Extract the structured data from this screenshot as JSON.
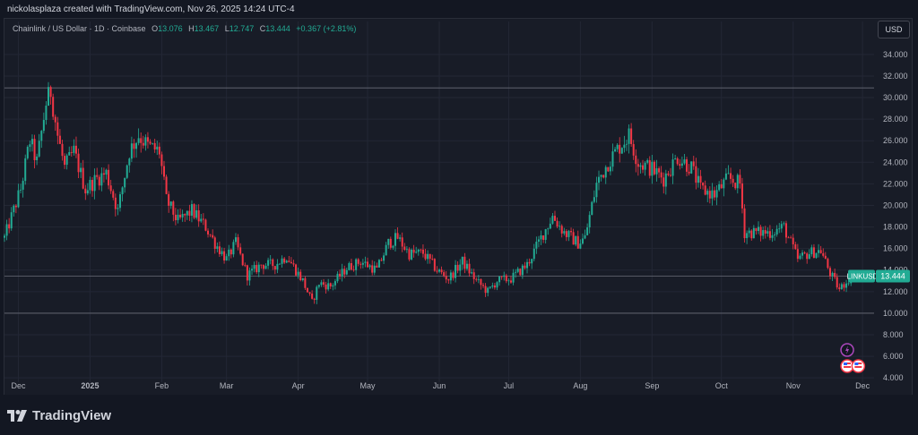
{
  "header": {
    "caption": "nickolasplaza created with TradingView.com, Nov 26, 2025 14:24 UTC-4"
  },
  "legend": {
    "symbol": "Chainlink / US Dollar · 1D · Coinbase",
    "open_label": "O",
    "open": "13.076",
    "high_label": "H",
    "high": "13.467",
    "low_label": "L",
    "low": "12.747",
    "close_label": "C",
    "close": "13.444",
    "change": "+0.367 (+2.81%)"
  },
  "currency_button": "USD",
  "price_tag": {
    "symbol": "LINKUSD",
    "value": "13.444"
  },
  "logo": {
    "text": "TradingView",
    "icon": "tradingview-logo-icon"
  },
  "colors": {
    "up": "#22ab94",
    "down": "#f23645",
    "background": "#131722",
    "pane": "#181c27"
  },
  "chart_data": {
    "type": "candlestick",
    "symbol": "LINKUSD",
    "xlabel": "",
    "ylabel": "",
    "yticks": [
      4,
      6,
      8,
      10,
      12,
      14,
      16,
      18,
      20,
      22,
      24,
      26,
      28,
      30,
      32,
      34
    ],
    "ytick_labels": [
      "4.000",
      "6.000",
      "8.000",
      "10.000",
      "12.000",
      "14.000",
      "16.000",
      "18.000",
      "20.000",
      "22.000",
      "24.000",
      "26.000",
      "28.000",
      "30.000",
      "32.000",
      "34.000"
    ],
    "ylim": [
      3.6,
      35.4
    ],
    "xlim": [
      "2024-11-25",
      "2025-12-06"
    ],
    "xticks": [
      {
        "label": "Dec",
        "date": "2024-12-01"
      },
      {
        "label": "2025",
        "date": "2025-01-01"
      },
      {
        "label": "Feb",
        "date": "2025-02-01"
      },
      {
        "label": "Mar",
        "date": "2025-03-01"
      },
      {
        "label": "Apr",
        "date": "2025-04-01"
      },
      {
        "label": "May",
        "date": "2025-05-01"
      },
      {
        "label": "Jun",
        "date": "2025-06-01"
      },
      {
        "label": "Jul",
        "date": "2025-07-01"
      },
      {
        "label": "Aug",
        "date": "2025-08-01"
      },
      {
        "label": "Sep",
        "date": "2025-09-01"
      },
      {
        "label": "Oct",
        "date": "2025-10-01"
      },
      {
        "label": "Nov",
        "date": "2025-11-01"
      },
      {
        "label": "Dec",
        "date": "2025-12-01"
      }
    ],
    "horizontal_lines": [
      30.9,
      13.44,
      10.0
    ],
    "last_price": 13.444,
    "closes": [
      {
        "date": "2024-11-25",
        "close": 17.0
      },
      {
        "date": "2024-12-02",
        "close": 21.5
      },
      {
        "date": "2024-12-06",
        "close": 26.0
      },
      {
        "date": "2024-12-09",
        "close": 24.0
      },
      {
        "date": "2024-12-13",
        "close": 29.5
      },
      {
        "date": "2024-12-15",
        "close": 30.6
      },
      {
        "date": "2024-12-18",
        "close": 26.5
      },
      {
        "date": "2024-12-21",
        "close": 23.5
      },
      {
        "date": "2024-12-25",
        "close": 25.0
      },
      {
        "date": "2024-12-30",
        "close": 21.5
      },
      {
        "date": "2025-01-04",
        "close": 22.5
      },
      {
        "date": "2025-01-08",
        "close": 23.0
      },
      {
        "date": "2025-01-13",
        "close": 19.5
      },
      {
        "date": "2025-01-18",
        "close": 25.0
      },
      {
        "date": "2025-01-22",
        "close": 26.5
      },
      {
        "date": "2025-01-26",
        "close": 25.5
      },
      {
        "date": "2025-01-31",
        "close": 25.0
      },
      {
        "date": "2025-02-03",
        "close": 20.5
      },
      {
        "date": "2025-02-08",
        "close": 18.5
      },
      {
        "date": "2025-02-14",
        "close": 19.5
      },
      {
        "date": "2025-02-20",
        "close": 18.0
      },
      {
        "date": "2025-02-24",
        "close": 16.5
      },
      {
        "date": "2025-03-01",
        "close": 15.0
      },
      {
        "date": "2025-03-05",
        "close": 16.5
      },
      {
        "date": "2025-03-10",
        "close": 13.5
      },
      {
        "date": "2025-03-16",
        "close": 14.5
      },
      {
        "date": "2025-03-22",
        "close": 14.5
      },
      {
        "date": "2025-03-27",
        "close": 15.3
      },
      {
        "date": "2025-04-03",
        "close": 13.0
      },
      {
        "date": "2025-04-07",
        "close": 11.0
      },
      {
        "date": "2025-04-10",
        "close": 12.8
      },
      {
        "date": "2025-04-15",
        "close": 12.5
      },
      {
        "date": "2025-04-22",
        "close": 14.2
      },
      {
        "date": "2025-04-28",
        "close": 14.8
      },
      {
        "date": "2025-05-05",
        "close": 14.0
      },
      {
        "date": "2025-05-10",
        "close": 16.5
      },
      {
        "date": "2025-05-14",
        "close": 17.0
      },
      {
        "date": "2025-05-19",
        "close": 15.5
      },
      {
        "date": "2025-05-25",
        "close": 15.6
      },
      {
        "date": "2025-05-31",
        "close": 14.0
      },
      {
        "date": "2025-06-05",
        "close": 13.2
      },
      {
        "date": "2025-06-11",
        "close": 14.8
      },
      {
        "date": "2025-06-17",
        "close": 13.0
      },
      {
        "date": "2025-06-22",
        "close": 12.0
      },
      {
        "date": "2025-06-26",
        "close": 13.0
      },
      {
        "date": "2025-07-02",
        "close": 13.2
      },
      {
        "date": "2025-07-09",
        "close": 14.5
      },
      {
        "date": "2025-07-15",
        "close": 17.0
      },
      {
        "date": "2025-07-20",
        "close": 19.0
      },
      {
        "date": "2025-07-25",
        "close": 17.5
      },
      {
        "date": "2025-07-31",
        "close": 16.5
      },
      {
        "date": "2025-08-03",
        "close": 17.0
      },
      {
        "date": "2025-08-08",
        "close": 22.0
      },
      {
        "date": "2025-08-13",
        "close": 24.0
      },
      {
        "date": "2025-08-18",
        "close": 25.5
      },
      {
        "date": "2025-08-22",
        "close": 26.5
      },
      {
        "date": "2025-08-26",
        "close": 24.0
      },
      {
        "date": "2025-08-31",
        "close": 23.5
      },
      {
        "date": "2025-09-06",
        "close": 22.5
      },
      {
        "date": "2025-09-12",
        "close": 24.5
      },
      {
        "date": "2025-09-18",
        "close": 23.5
      },
      {
        "date": "2025-09-22",
        "close": 21.5
      },
      {
        "date": "2025-09-28",
        "close": 21.0
      },
      {
        "date": "2025-10-04",
        "close": 22.5
      },
      {
        "date": "2025-10-09",
        "close": 22.0
      },
      {
        "date": "2025-10-11",
        "close": 17.5
      },
      {
        "date": "2025-10-16",
        "close": 17.5
      },
      {
        "date": "2025-10-22",
        "close": 17.5
      },
      {
        "date": "2025-10-28",
        "close": 18.0
      },
      {
        "date": "2025-11-03",
        "close": 15.0
      },
      {
        "date": "2025-11-08",
        "close": 15.6
      },
      {
        "date": "2025-11-13",
        "close": 15.8
      },
      {
        "date": "2025-11-17",
        "close": 13.7
      },
      {
        "date": "2025-11-21",
        "close": 12.2
      },
      {
        "date": "2025-11-26",
        "close": 13.444
      }
    ],
    "event_markers": [
      {
        "date": "2025-11-24",
        "icon": "lightning-icon"
      },
      {
        "date": "2025-11-24",
        "icon": "us-flag-icon"
      },
      {
        "date": "2025-11-28",
        "icon": "us-flag-icon"
      }
    ]
  }
}
